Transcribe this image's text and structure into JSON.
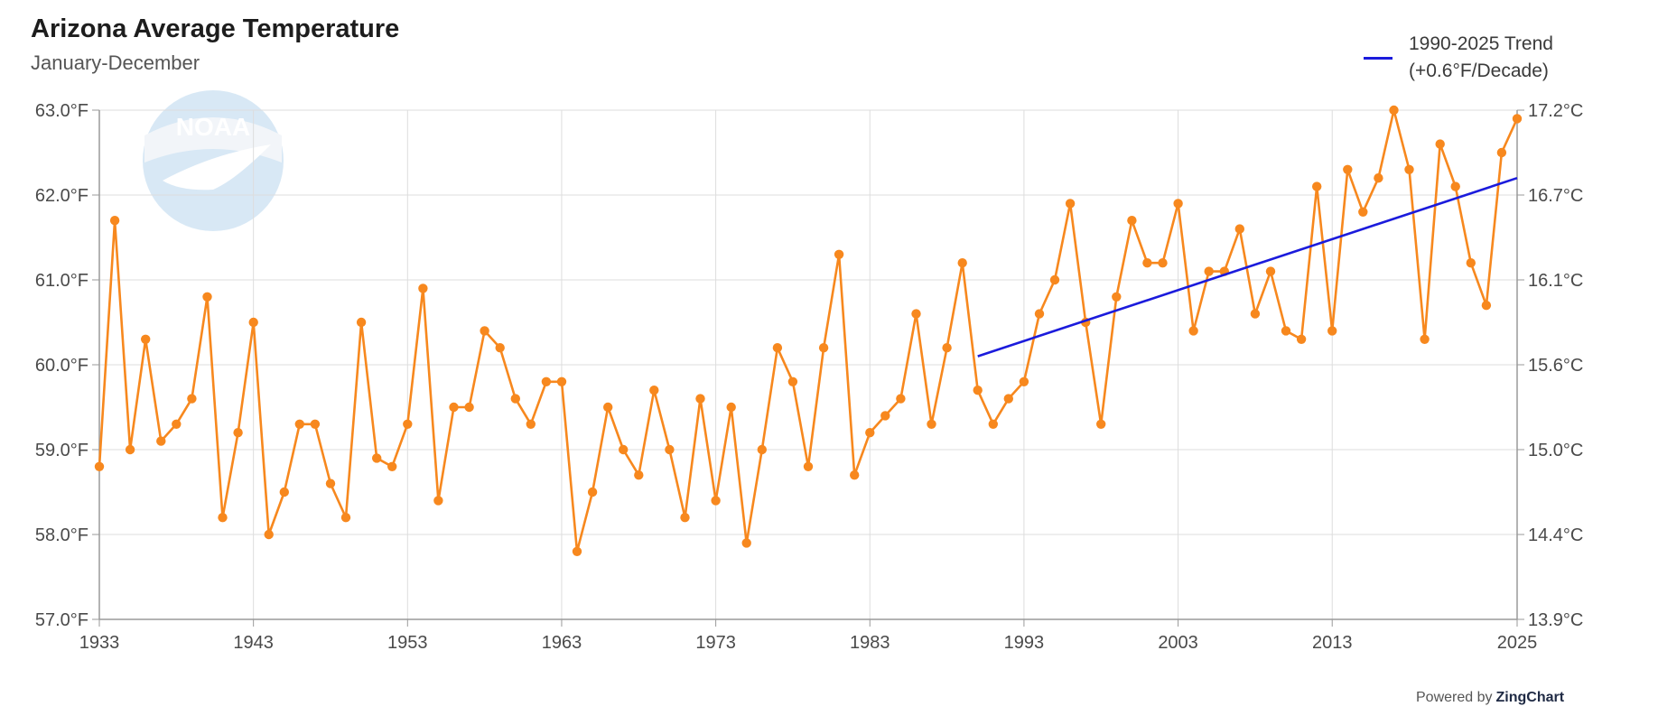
{
  "logo": {
    "text": "NOAA",
    "icon": "noaa-logo-icon"
  },
  "powered": {
    "prefix": "Powered by",
    "brand": "ZingChart"
  },
  "colors": {
    "series": "#f7881e",
    "trend": "#1b1bdc",
    "grid": "#dddddd",
    "axis": "#9a9a9a"
  },
  "chart_data": {
    "type": "line",
    "title": "Arizona Average Temperature",
    "subtitle": "January-December",
    "grid": true,
    "legend_position": "top-right",
    "x_ticks": [
      1933,
      1943,
      1953,
      1963,
      1973,
      1983,
      1993,
      2003,
      2013,
      2025
    ],
    "y_ticks_left": [
      "63.0°F",
      "62.0°F",
      "61.0°F",
      "60.0°F",
      "59.0°F",
      "58.0°F",
      "57.0°F"
    ],
    "y_ticks_right": [
      "17.2°C",
      "16.7°C",
      "16.1°C",
      "15.6°C",
      "15.0°C",
      "14.4°C",
      "13.9°C"
    ],
    "xlim": [
      1933,
      2025
    ],
    "ylim": [
      57.0,
      63.0
    ],
    "series": [
      {
        "x_start": 1933,
        "values": [
          58.8,
          61.7,
          59.0,
          60.3,
          59.1,
          59.3,
          59.6,
          60.8,
          58.2,
          59.2,
          60.5,
          58.0,
          58.5,
          59.3,
          59.3,
          58.6,
          58.2,
          60.5,
          58.9,
          58.8,
          59.3,
          60.9,
          58.4,
          59.5,
          59.5,
          60.4,
          60.2,
          59.6,
          59.3,
          59.8,
          59.8,
          57.8,
          58.5,
          59.5,
          59.0,
          58.7,
          59.7,
          59.0,
          58.2,
          59.6,
          58.4,
          59.5,
          57.9,
          59.0,
          60.2,
          59.8,
          58.8,
          60.2,
          61.3,
          58.7,
          59.2,
          59.4,
          59.6,
          60.6,
          59.3,
          60.2,
          61.2,
          59.7,
          59.3,
          59.6,
          59.8,
          60.6,
          61.0,
          61.9,
          60.5,
          59.3,
          60.8,
          61.7,
          61.2,
          61.2,
          61.9,
          60.4,
          61.1,
          61.1,
          61.6,
          60.6,
          61.1,
          60.4,
          60.3,
          62.1,
          60.4,
          62.3,
          61.8,
          62.2,
          63.0,
          62.3,
          60.3,
          62.6,
          62.1,
          61.2,
          60.7,
          62.5,
          62.9
        ]
      },
      {
        "name": "1990-2025 Trend",
        "name_line2": "(+0.6°F/Decade)",
        "x": [
          1990,
          2025
        ],
        "values": [
          60.1,
          62.2
        ]
      }
    ]
  }
}
